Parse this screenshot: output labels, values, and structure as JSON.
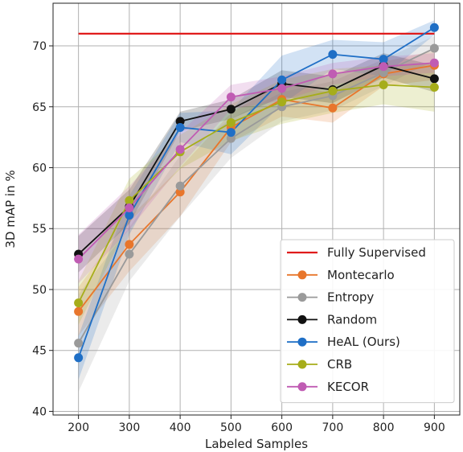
{
  "chart_data": {
    "type": "line",
    "xlabel": "Labeled Samples",
    "ylabel": "3D mAP in %",
    "x": [
      200,
      300,
      400,
      500,
      600,
      700,
      800,
      900
    ],
    "xlim": [
      150,
      950
    ],
    "ylim": [
      39.7,
      73.5
    ],
    "xticks": [
      200,
      300,
      400,
      500,
      600,
      700,
      800,
      900
    ],
    "yticks": [
      40,
      45,
      50,
      55,
      60,
      65,
      70
    ],
    "grid": true,
    "legend_position": "lower-right",
    "series": [
      {
        "name": "Fully Supervised",
        "color": "#e01b1b",
        "style": "reference",
        "values": [
          71.0,
          71.0,
          71.0,
          71.0,
          71.0,
          71.0,
          71.0,
          71.0
        ]
      },
      {
        "name": "Montecarlo",
        "color": "#e8762c",
        "values": [
          48.2,
          53.7,
          58.0,
          63.3,
          65.6,
          64.9,
          67.7,
          68.4
        ],
        "band": [
          2.0,
          2.2,
          2.0,
          1.2,
          1.4,
          1.2,
          1.0,
          1.2
        ]
      },
      {
        "name": "Entropy",
        "color": "#9a9a9a",
        "values": [
          45.6,
          52.9,
          58.5,
          62.4,
          65.0,
          65.9,
          67.8,
          69.8
        ],
        "band": [
          4.0,
          2.2,
          2.5,
          1.6,
          1.2,
          1.2,
          1.1,
          1.0
        ]
      },
      {
        "name": "Random",
        "color": "#111111",
        "values": [
          52.9,
          56.8,
          63.8,
          64.8,
          66.9,
          66.4,
          68.4,
          67.3
        ],
        "band": [
          1.5,
          1.4,
          0.8,
          0.8,
          1.1,
          1.1,
          1.0,
          1.1
        ]
      },
      {
        "name": "HeAL (Ours)",
        "color": "#1f6fc6",
        "values": [
          44.4,
          56.1,
          63.3,
          62.9,
          67.2,
          69.3,
          68.9,
          71.5
        ],
        "band": [
          1.8,
          1.6,
          1.2,
          1.8,
          2.0,
          1.2,
          1.4,
          0.6
        ]
      },
      {
        "name": "CRB",
        "color": "#a6ad1a",
        "values": [
          48.9,
          57.3,
          61.3,
          63.7,
          65.4,
          66.3,
          66.8,
          66.6
        ],
        "band": [
          1.8,
          1.8,
          1.4,
          1.5,
          1.8,
          1.8,
          1.6,
          2.0
        ]
      },
      {
        "name": "KECOR",
        "color": "#c05cb3",
        "values": [
          52.5,
          56.7,
          61.5,
          65.8,
          66.5,
          67.7,
          68.3,
          68.6
        ],
        "band": [
          2.0,
          1.8,
          1.4,
          1.0,
          1.0,
          0.9,
          0.8,
          0.8
        ]
      }
    ]
  }
}
